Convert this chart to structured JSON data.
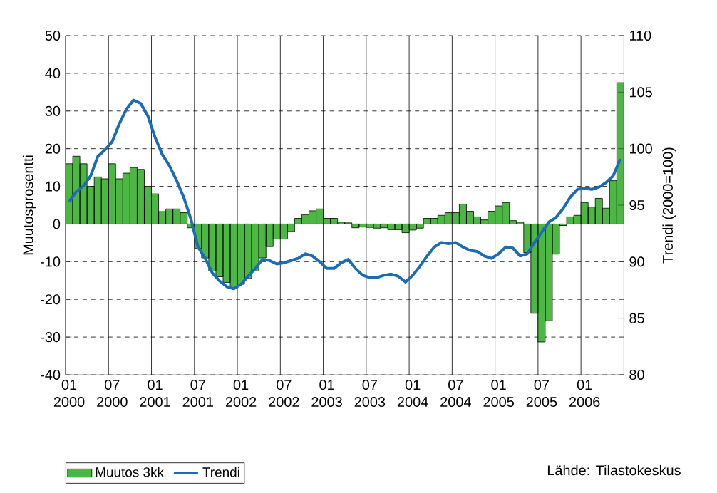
{
  "chart_data": {
    "type": "bar",
    "categories": [
      "01 2000",
      null,
      null,
      null,
      null,
      null,
      "07 2000",
      null,
      null,
      null,
      null,
      null,
      "01 2001",
      null,
      null,
      null,
      null,
      null,
      "07 2001",
      null,
      null,
      null,
      null,
      null,
      "01 2002",
      null,
      null,
      null,
      null,
      null,
      "07 2002",
      null,
      null,
      null,
      null,
      null,
      "01 2003",
      null,
      null,
      null,
      null,
      null,
      "07 2003",
      null,
      null,
      null,
      null,
      null,
      "01 2004",
      null,
      null,
      null,
      null,
      null,
      "07 2004",
      null,
      null,
      null,
      null,
      null,
      "01 2005",
      null,
      null,
      null,
      null,
      null,
      "07 2005",
      null,
      null,
      null,
      null,
      null,
      "01 2006",
      null,
      null,
      null,
      null,
      null
    ],
    "series": [
      {
        "name": "Muutos 3kk",
        "color": "#4cb843",
        "values": [
          16,
          18,
          16,
          10,
          12.5,
          12,
          16,
          12,
          13.5,
          15,
          14.5,
          10,
          8,
          3.3,
          4,
          4,
          3,
          -1,
          -6.5,
          -9,
          -12.5,
          -14,
          -15.5,
          -17,
          -16,
          -14.5,
          -12.5,
          -9,
          -6,
          -4,
          -4,
          -2,
          1.5,
          2.5,
          3.5,
          4,
          1.5,
          1.5,
          0.5,
          0.3,
          -1,
          -0.8,
          -0.9,
          -1.1,
          -1,
          -1.5,
          -1.5,
          -2.3,
          -1.6,
          -1.1,
          1.5,
          1.5,
          2.3,
          3,
          3,
          5.3,
          3.4,
          1.9,
          1.1,
          3.4,
          4.8,
          5.7,
          0.9,
          0.5,
          -7.6,
          -23.7,
          -31.3,
          -25.7,
          -8,
          -0.4,
          1.9,
          2.3,
          5.7,
          4.5,
          6.8,
          4.2,
          11.5,
          37.5
        ]
      },
      {
        "name": "Trendi",
        "type": "line",
        "axis": "y2",
        "color": "#1b6cb5",
        "values": [
          95.3,
          96.2,
          96.7,
          97.6,
          99.3,
          99.9,
          100.6,
          102.2,
          103.5,
          104.3,
          104.0,
          102.9,
          101.0,
          99.5,
          98.5,
          97.2,
          95.7,
          93.8,
          91.3,
          90.3,
          89.0,
          88.3,
          87.8,
          87.6,
          88.0,
          88.7,
          89.4,
          90.2,
          90.1,
          89.8,
          89.9,
          90.1,
          90.3,
          90.7,
          90.5,
          90.0,
          89.4,
          89.4,
          89.9,
          90.2,
          89.4,
          88.8,
          88.6,
          88.6,
          88.8,
          88.9,
          88.7,
          88.2,
          88.8,
          89.6,
          90.5,
          91.3,
          91.7,
          91.6,
          91.7,
          91.3,
          91.0,
          90.9,
          90.5,
          90.3,
          90.7,
          91.3,
          91.2,
          90.5,
          90.7,
          91.7,
          92.6,
          93.5,
          93.9,
          94.7,
          95.7,
          96.4,
          96.5,
          96.4,
          96.6,
          97.0,
          97.6,
          99.1
        ]
      }
    ],
    "ylim": [
      -40,
      50
    ],
    "yticks": [
      -40,
      -30,
      -20,
      -10,
      0,
      10,
      20,
      30,
      40,
      50
    ],
    "y2lim": [
      80,
      110
    ],
    "y2ticks": [
      80,
      85,
      90,
      95,
      100,
      105,
      110
    ],
    "ylabel": "Muutosprosentti",
    "y2label": "Trendi (2000=100)",
    "annotations": [
      "Lähde: Tilastokeskus"
    ],
    "grid": true,
    "legend": "bottom left"
  }
}
